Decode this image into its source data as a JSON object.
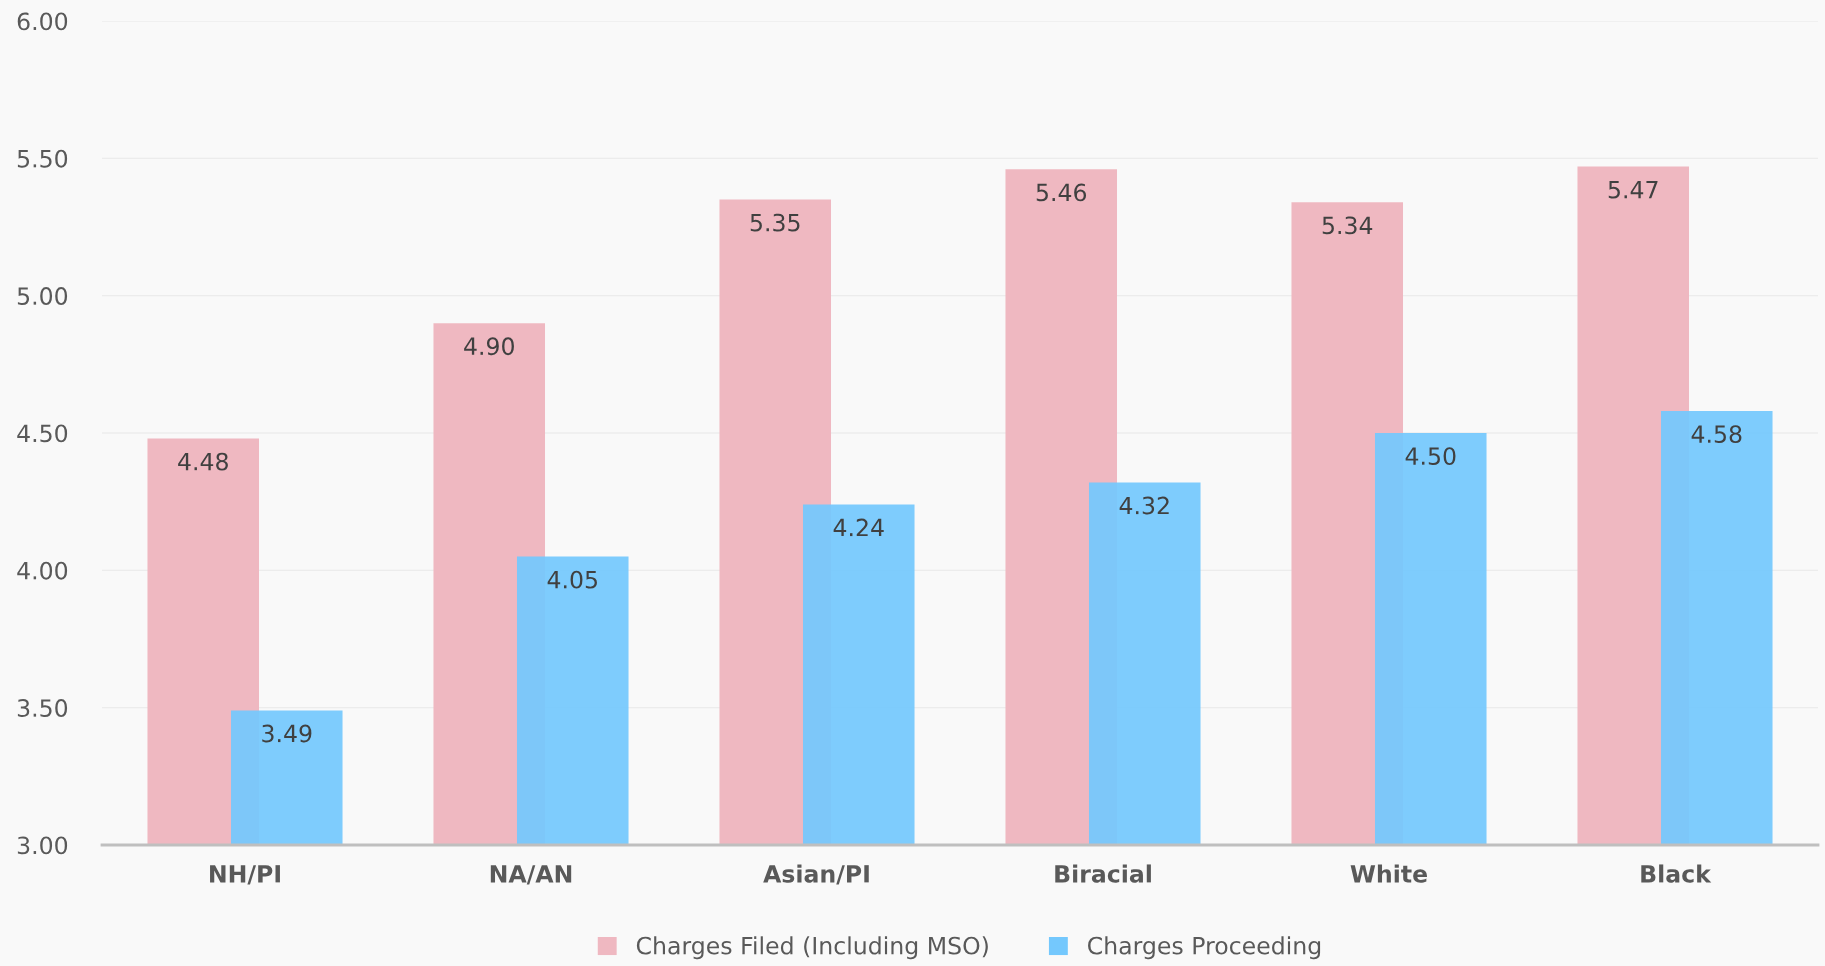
{
  "chart_data": {
    "type": "bar",
    "categories": [
      "NH/PI",
      "NA/AN",
      "Asian/PI",
      "Biracial",
      "White",
      "Black"
    ],
    "series": [
      {
        "name": "Charges Filed (Including MSO)",
        "color": "#efb8c1",
        "values": [
          4.48,
          4.9,
          5.35,
          5.46,
          5.34,
          5.47
        ],
        "value_labels": [
          "4.48",
          "4.90",
          "5.35",
          "5.46",
          "5.34",
          "5.47"
        ]
      },
      {
        "name": "Charges Proceeding",
        "color": "#74c8fd",
        "values": [
          3.49,
          4.05,
          4.24,
          4.32,
          4.5,
          4.58
        ],
        "value_labels": [
          "3.49",
          "4.05",
          "4.24",
          "4.32",
          "4.50",
          "4.58"
        ]
      }
    ],
    "ylim": [
      3.0,
      6.0
    ],
    "yticks": [
      {
        "value": 3.0,
        "label": "3.00"
      },
      {
        "value": 3.5,
        "label": "3.50"
      },
      {
        "value": 4.0,
        "label": "4.00"
      },
      {
        "value": 4.5,
        "label": "4.50"
      },
      {
        "value": 5.0,
        "label": "5.00"
      },
      {
        "value": 5.5,
        "label": "5.50"
      },
      {
        "value": 6.0,
        "label": "6.00"
      }
    ],
    "grid": "y",
    "legend": "bottom"
  }
}
